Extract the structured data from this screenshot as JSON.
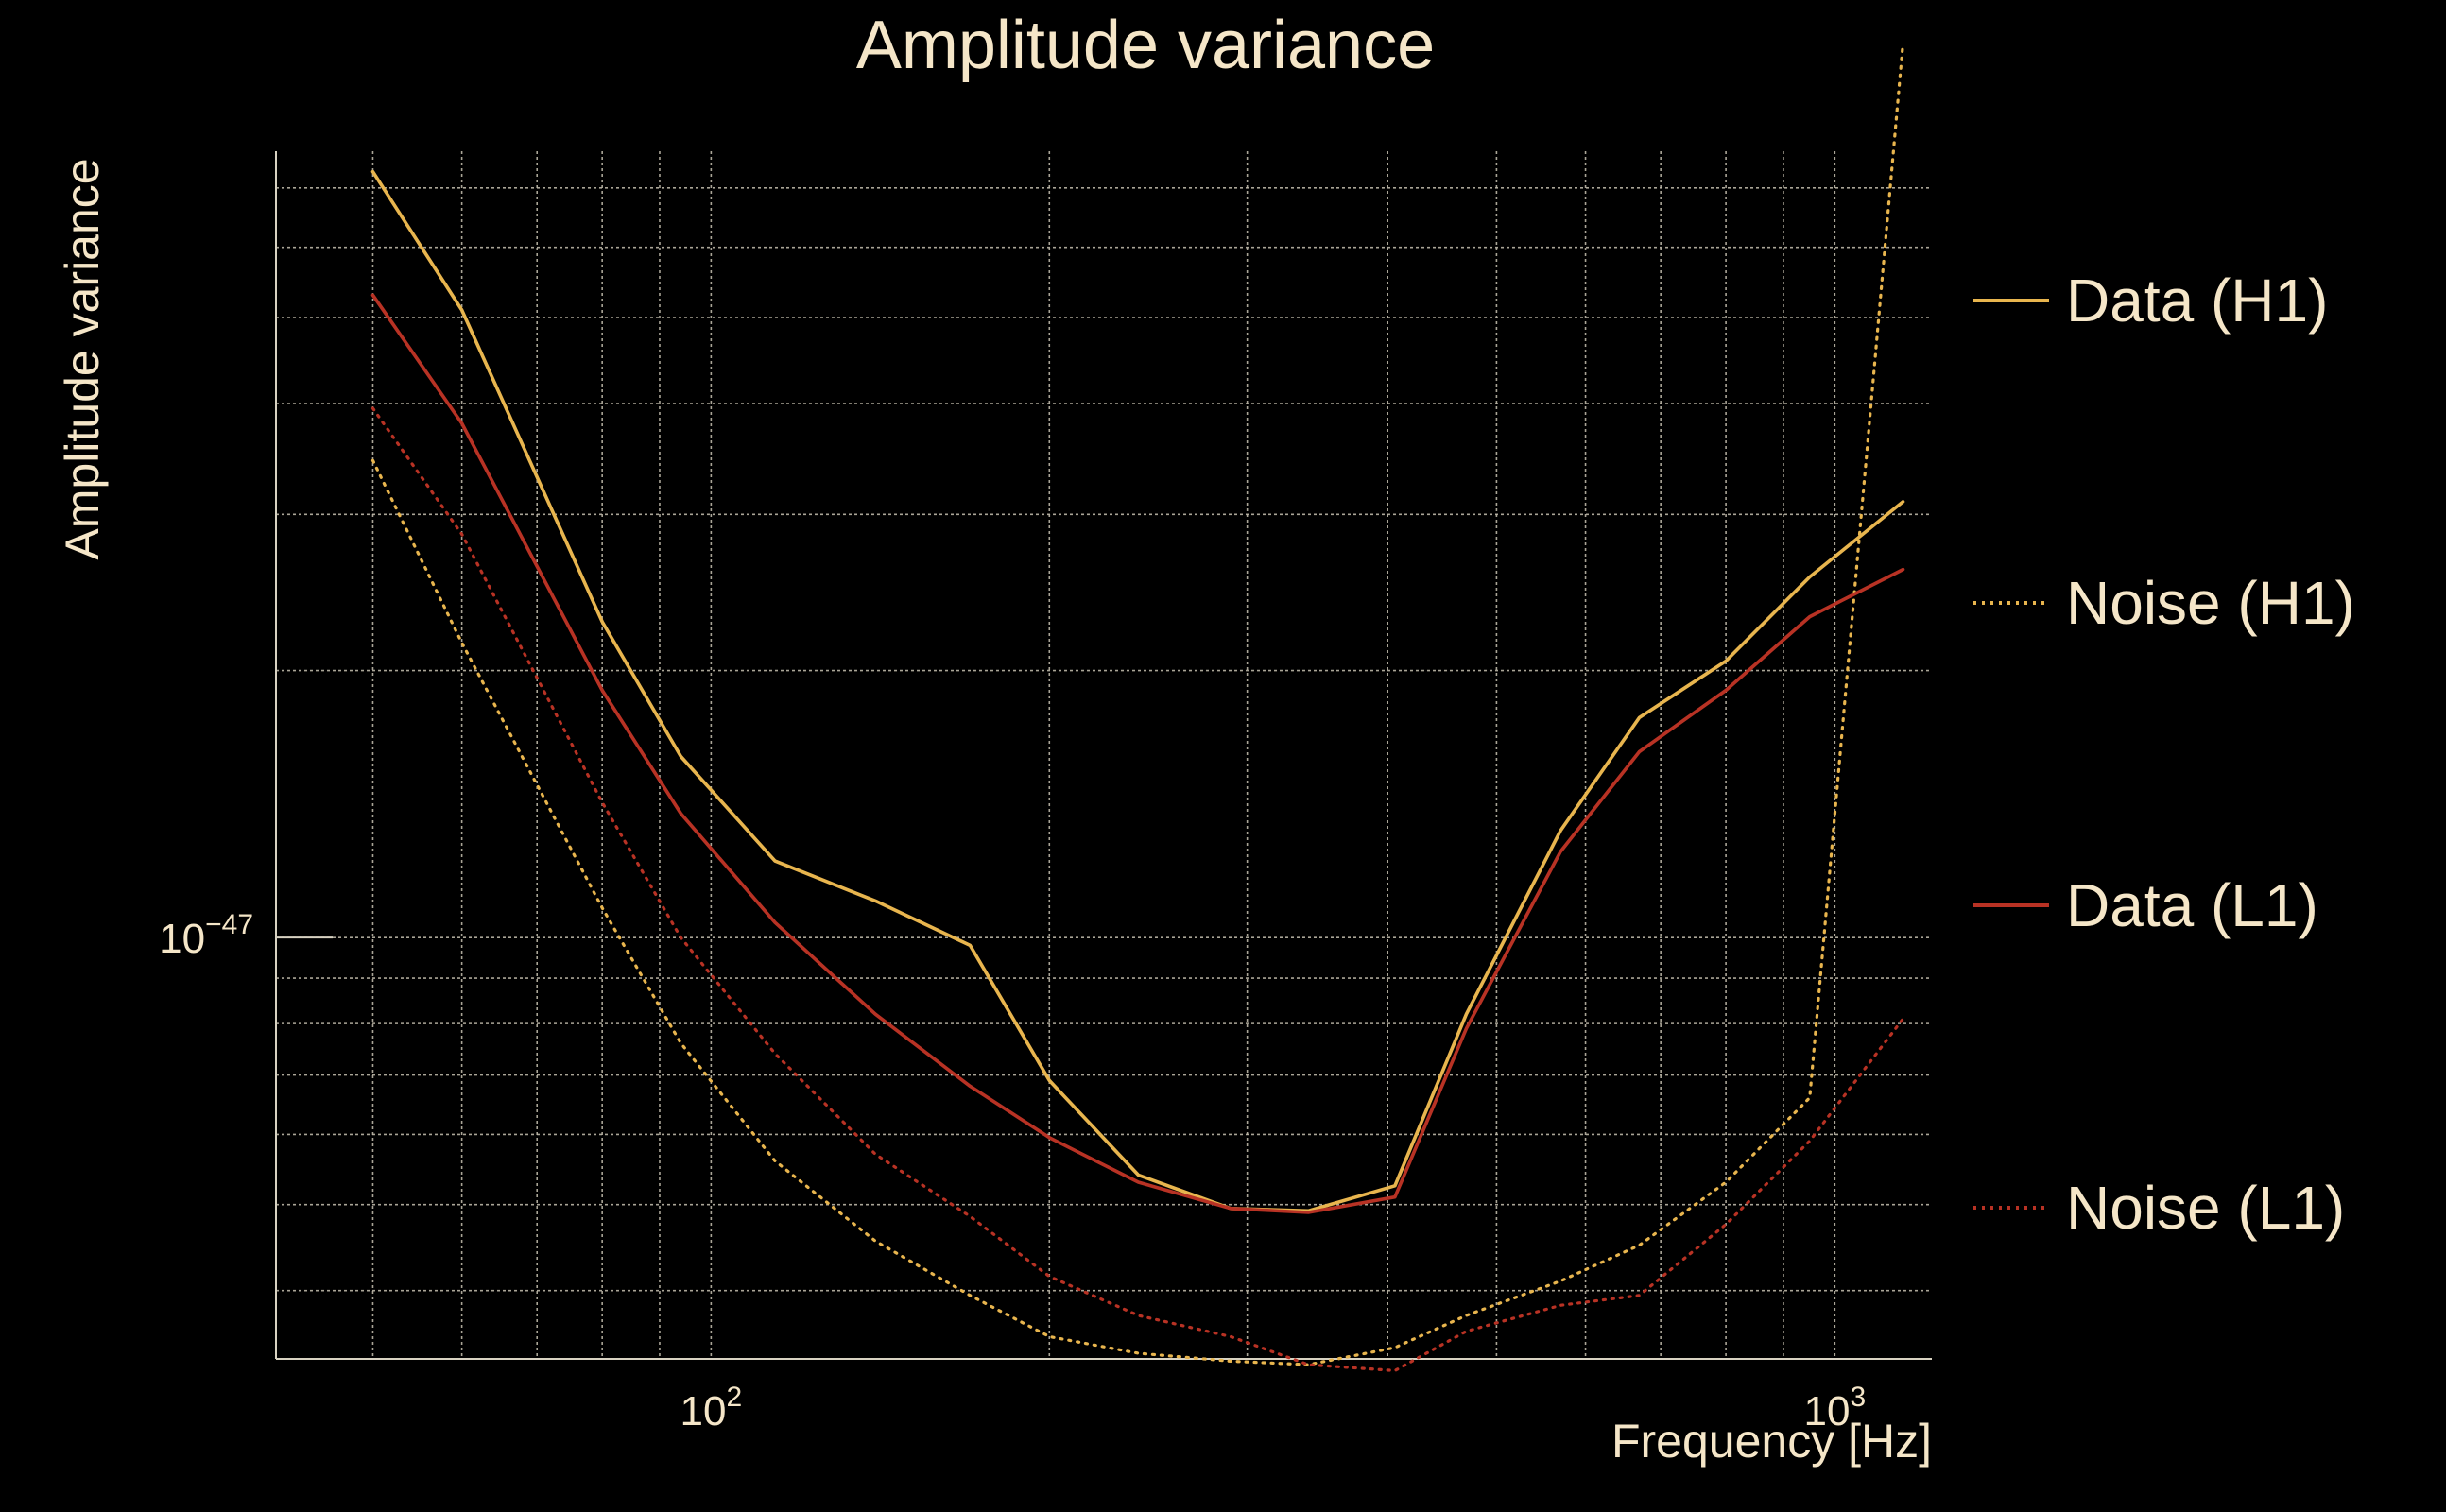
{
  "chart_data": {
    "type": "line",
    "title": "Amplitude variance",
    "xlabel": "Frequency [Hz]",
    "ylabel": "Amplitude variance",
    "xscale": "log",
    "yscale": "log",
    "xlim": [
      41,
      1220
    ],
    "ylim": [
      3.35e-48,
      7.7e-47
    ],
    "x_ticks": [
      {
        "value": 100,
        "base": "10",
        "exp": "2"
      },
      {
        "value": 1000,
        "base": "10",
        "exp": "3"
      }
    ],
    "y_ticks": [
      {
        "value": 1e-47,
        "base": "10",
        "exp": "−47"
      }
    ],
    "grid": true,
    "legend_position": "right",
    "series": [
      {
        "name": "Data (H1)",
        "color": "#e8b54e",
        "style": "solid",
        "x": [
          50,
          60,
          80,
          94,
          114,
          140,
          170,
          200,
          240,
          290,
          340,
          406,
          470,
          570,
          670,
          800,
          950,
          1150
        ],
        "y": [
          7.3e-47,
          5.1e-47,
          2.27e-47,
          1.6e-47,
          1.22e-47,
          1.1e-47,
          9.8e-48,
          6.9e-48,
          5.4e-48,
          4.95e-48,
          4.92e-48,
          5.25e-48,
          8.2e-48,
          1.32e-47,
          1.77e-47,
          2.05e-47,
          2.55e-47,
          3.1e-47
        ]
      },
      {
        "name": "Noise (H1)",
        "color": "#e8b54e",
        "style": "dotted",
        "x": [
          50,
          60,
          80,
          94,
          114,
          140,
          170,
          200,
          240,
          290,
          340,
          406,
          470,
          570,
          670,
          800,
          950,
          1150
        ],
        "y": [
          3.45e-47,
          2.15e-47,
          1.08e-47,
          7.6e-48,
          5.6e-48,
          4.55e-48,
          3.95e-48,
          3.55e-48,
          3.4e-48,
          3.33e-48,
          3.3e-48,
          3.45e-48,
          3.75e-48,
          4.1e-48,
          4.5e-48,
          5.3e-48,
          6.6e-48,
          1.02e-46
        ]
      },
      {
        "name": "Data (L1)",
        "color": "#b83224",
        "style": "solid",
        "x": [
          50,
          60,
          80,
          94,
          114,
          140,
          170,
          200,
          240,
          290,
          340,
          406,
          470,
          570,
          670,
          800,
          950,
          1150
        ],
        "y": [
          5.3e-47,
          3.8e-47,
          1.9e-47,
          1.38e-47,
          1.04e-47,
          8.2e-48,
          6.8e-48,
          5.95e-48,
          5.3e-48,
          4.95e-48,
          4.9e-48,
          5.1e-48,
          7.9e-48,
          1.25e-47,
          1.62e-47,
          1.9e-47,
          2.3e-47,
          2.6e-47
        ]
      },
      {
        "name": "Noise (L1)",
        "color": "#b83224",
        "style": "dotted",
        "x": [
          50,
          60,
          80,
          94,
          114,
          140,
          170,
          200,
          240,
          290,
          340,
          406,
          470,
          570,
          670,
          800,
          950,
          1150
        ],
        "y": [
          3.95e-47,
          2.85e-47,
          1.42e-47,
          1e-47,
          7.4e-48,
          5.7e-48,
          4.85e-48,
          4.15e-48,
          3.75e-48,
          3.55e-48,
          3.3e-48,
          3.25e-48,
          3.6e-48,
          3.85e-48,
          3.95e-48,
          4.75e-48,
          5.9e-48,
          8.1e-48
        ]
      }
    ]
  }
}
